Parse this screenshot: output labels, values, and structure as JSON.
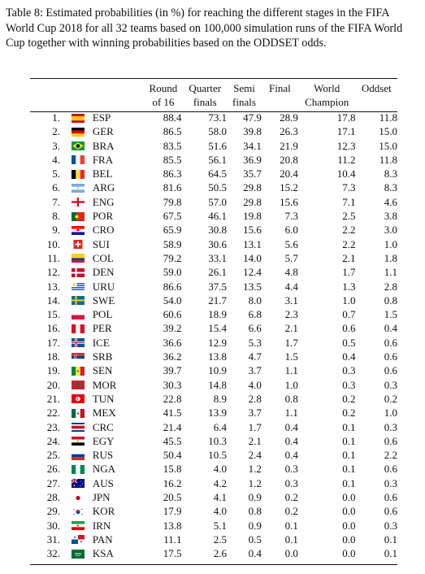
{
  "caption": "Table 8: Estimated probabilities (in %) for reaching the different stages in the FIFA World Cup 2018 for all 32 teams based on 100,000 simulation runs of the FIFA World Cup together with winning probabilities based on the ODDSET odds.",
  "headers": {
    "round_of_16": [
      "Round",
      "of 16"
    ],
    "quarter_finals": [
      "Quarter",
      "finals"
    ],
    "semi_finals": [
      "Semi",
      "finals"
    ],
    "final": [
      "Final",
      ""
    ],
    "world_champion": [
      "World",
      "Champion"
    ],
    "oddset": [
      "Oddset",
      ""
    ]
  },
  "rows": [
    {
      "rank": "1.",
      "team": "ESP",
      "flag": "ESP",
      "r16": "88.4",
      "qf": "73.1",
      "sf": "47.9",
      "final": "28.9",
      "champion": "17.8",
      "oddset": "11.8"
    },
    {
      "rank": "2.",
      "team": "GER",
      "flag": "GER",
      "r16": "86.5",
      "qf": "58.0",
      "sf": "39.8",
      "final": "26.3",
      "champion": "17.1",
      "oddset": "15.0"
    },
    {
      "rank": "3.",
      "team": "BRA",
      "flag": "BRA",
      "r16": "83.5",
      "qf": "51.6",
      "sf": "34.1",
      "final": "21.9",
      "champion": "12.3",
      "oddset": "15.0"
    },
    {
      "rank": "4.",
      "team": "FRA",
      "flag": "FRA",
      "r16": "85.5",
      "qf": "56.1",
      "sf": "36.9",
      "final": "20.8",
      "champion": "11.2",
      "oddset": "11.8"
    },
    {
      "rank": "5.",
      "team": "BEL",
      "flag": "BEL",
      "r16": "86.3",
      "qf": "64.5",
      "sf": "35.7",
      "final": "20.4",
      "champion": "10.4",
      "oddset": "8.3"
    },
    {
      "rank": "6.",
      "team": "ARG",
      "flag": "ARG",
      "r16": "81.6",
      "qf": "50.5",
      "sf": "29.8",
      "final": "15.2",
      "champion": "7.3",
      "oddset": "8.3"
    },
    {
      "rank": "7.",
      "team": "ENG",
      "flag": "ENG",
      "r16": "79.8",
      "qf": "57.0",
      "sf": "29.8",
      "final": "15.6",
      "champion": "7.1",
      "oddset": "4.6"
    },
    {
      "rank": "8.",
      "team": "POR",
      "flag": "POR",
      "r16": "67.5",
      "qf": "46.1",
      "sf": "19.8",
      "final": "7.3",
      "champion": "2.5",
      "oddset": "3.8"
    },
    {
      "rank": "9.",
      "team": "CRO",
      "flag": "CRO",
      "r16": "65.9",
      "qf": "30.8",
      "sf": "15.6",
      "final": "6.0",
      "champion": "2.2",
      "oddset": "3.0"
    },
    {
      "rank": "10.",
      "team": "SUI",
      "flag": "SUI",
      "r16": "58.9",
      "qf": "30.6",
      "sf": "13.1",
      "final": "5.6",
      "champion": "2.2",
      "oddset": "1.0"
    },
    {
      "rank": "11.",
      "team": "COL",
      "flag": "COL",
      "r16": "79.2",
      "qf": "33.1",
      "sf": "14.0",
      "final": "5.7",
      "champion": "2.1",
      "oddset": "1.8"
    },
    {
      "rank": "12.",
      "team": "DEN",
      "flag": "DEN",
      "r16": "59.0",
      "qf": "26.1",
      "sf": "12.4",
      "final": "4.8",
      "champion": "1.7",
      "oddset": "1.1"
    },
    {
      "rank": "13.",
      "team": "URU",
      "flag": "URU",
      "r16": "86.6",
      "qf": "37.5",
      "sf": "13.5",
      "final": "4.4",
      "champion": "1.3",
      "oddset": "2.8"
    },
    {
      "rank": "14.",
      "team": "SWE",
      "flag": "SWE",
      "r16": "54.0",
      "qf": "21.7",
      "sf": "8.0",
      "final": "3.1",
      "champion": "1.0",
      "oddset": "0.8"
    },
    {
      "rank": "15.",
      "team": "POL",
      "flag": "POL",
      "r16": "60.6",
      "qf": "18.9",
      "sf": "6.8",
      "final": "2.3",
      "champion": "0.7",
      "oddset": "1.5"
    },
    {
      "rank": "16.",
      "team": "PER",
      "flag": "PER",
      "r16": "39.2",
      "qf": "15.4",
      "sf": "6.6",
      "final": "2.1",
      "champion": "0.6",
      "oddset": "0.4"
    },
    {
      "rank": "17.",
      "team": "ICE",
      "flag": "ICE",
      "r16": "36.6",
      "qf": "12.9",
      "sf": "5.3",
      "final": "1.7",
      "champion": "0.5",
      "oddset": "0.6"
    },
    {
      "rank": "18.",
      "team": "SRB",
      "flag": "SRB",
      "r16": "36.2",
      "qf": "13.8",
      "sf": "4.7",
      "final": "1.5",
      "champion": "0.4",
      "oddset": "0.6"
    },
    {
      "rank": "19.",
      "team": "SEN",
      "flag": "SEN",
      "r16": "39.7",
      "qf": "10.9",
      "sf": "3.7",
      "final": "1.1",
      "champion": "0.3",
      "oddset": "0.6"
    },
    {
      "rank": "20.",
      "team": "MOR",
      "flag": "MOR",
      "r16": "30.3",
      "qf": "14.8",
      "sf": "4.0",
      "final": "1.0",
      "champion": "0.3",
      "oddset": "0.3"
    },
    {
      "rank": "21.",
      "team": "TUN",
      "flag": "TUN",
      "r16": "22.8",
      "qf": "8.9",
      "sf": "2.8",
      "final": "0.8",
      "champion": "0.2",
      "oddset": "0.2"
    },
    {
      "rank": "22.",
      "team": "MEX",
      "flag": "MEX",
      "r16": "41.5",
      "qf": "13.9",
      "sf": "3.7",
      "final": "1.1",
      "champion": "0.2",
      "oddset": "1.0"
    },
    {
      "rank": "23.",
      "team": "CRC",
      "flag": "CRC",
      "r16": "21.4",
      "qf": "6.4",
      "sf": "1.7",
      "final": "0.4",
      "champion": "0.1",
      "oddset": "0.3"
    },
    {
      "rank": "24.",
      "team": "EGY",
      "flag": "EGY",
      "r16": "45.5",
      "qf": "10.3",
      "sf": "2.1",
      "final": "0.4",
      "champion": "0.1",
      "oddset": "0.6"
    },
    {
      "rank": "25.",
      "team": "RUS",
      "flag": "RUS",
      "r16": "50.4",
      "qf": "10.5",
      "sf": "2.4",
      "final": "0.4",
      "champion": "0.1",
      "oddset": "2.2"
    },
    {
      "rank": "26.",
      "team": "NGA",
      "flag": "NGA",
      "r16": "15.8",
      "qf": "4.0",
      "sf": "1.2",
      "final": "0.3",
      "champion": "0.1",
      "oddset": "0.6"
    },
    {
      "rank": "27.",
      "team": "AUS",
      "flag": "AUS",
      "r16": "16.2",
      "qf": "4.2",
      "sf": "1.2",
      "final": "0.3",
      "champion": "0.1",
      "oddset": "0.3"
    },
    {
      "rank": "28.",
      "team": "JPN",
      "flag": "JPN",
      "r16": "20.5",
      "qf": "4.1",
      "sf": "0.9",
      "final": "0.2",
      "champion": "0.0",
      "oddset": "0.6"
    },
    {
      "rank": "29.",
      "team": "KOR",
      "flag": "KOR",
      "r16": "17.9",
      "qf": "4.0",
      "sf": "0.8",
      "final": "0.2",
      "champion": "0.0",
      "oddset": "0.6"
    },
    {
      "rank": "30.",
      "team": "IRN",
      "flag": "IRN",
      "r16": "13.8",
      "qf": "5.1",
      "sf": "0.9",
      "final": "0.1",
      "champion": "0.0",
      "oddset": "0.3"
    },
    {
      "rank": "31.",
      "team": "PAN",
      "flag": "PAN",
      "r16": "11.1",
      "qf": "2.5",
      "sf": "0.5",
      "final": "0.1",
      "champion": "0.0",
      "oddset": "0.1"
    },
    {
      "rank": "32.",
      "team": "KSA",
      "flag": "KSA",
      "r16": "17.5",
      "qf": "2.6",
      "sf": "0.4",
      "final": "0.0",
      "champion": "0.0",
      "oddset": "0.1"
    }
  ]
}
